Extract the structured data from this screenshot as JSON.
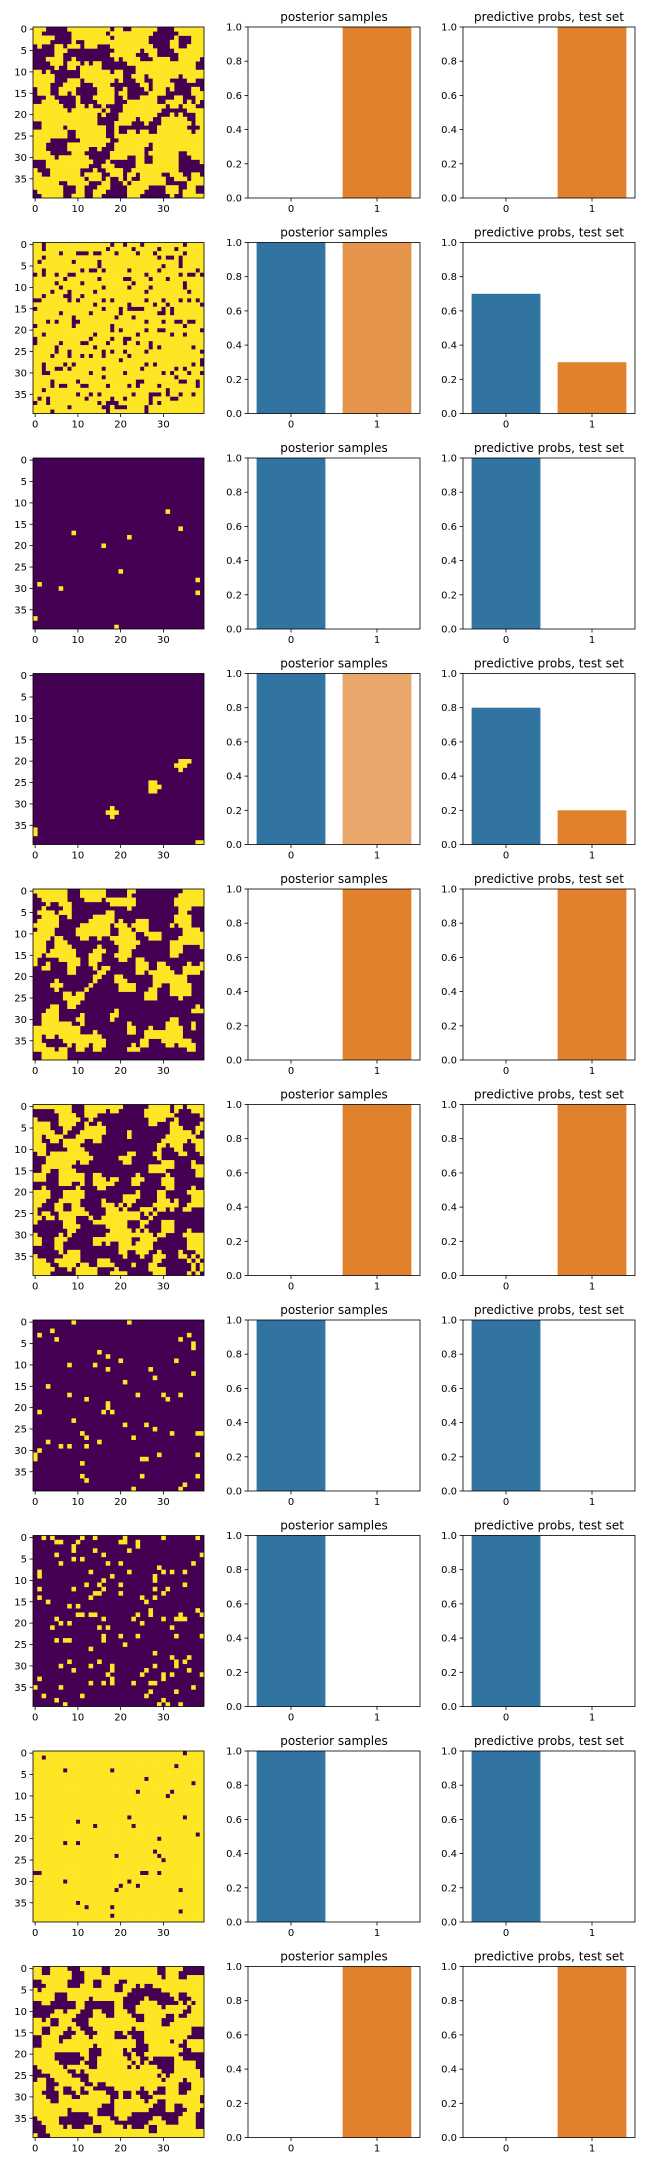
{
  "figure": {
    "title": "",
    "colors": {
      "grid_low": "#440154",
      "grid_high": "#fde725",
      "bar_class0": "#3274a1",
      "bar_class1": "#e1812c",
      "axes": "#000000",
      "background": "#ffffff"
    }
  },
  "chart_data": [
    {
      "row": 1,
      "image": {
        "type": "heatmap",
        "size": 40,
        "x_ticks": [
          "0",
          "10",
          "20",
          "30"
        ],
        "y_ticks": [
          "0",
          "5",
          "10",
          "15",
          "20",
          "25",
          "30",
          "35"
        ],
        "pattern": "mixed",
        "seed": 11,
        "density": 0.55
      },
      "posterior": {
        "type": "bar",
        "title": "posterior samples",
        "categories": [
          "0",
          "1"
        ],
        "values": [
          0.0,
          1.0
        ],
        "alphas": [
          1,
          1
        ],
        "ylim": [
          0,
          1
        ],
        "y_ticks": [
          "0.0",
          "0.2",
          "0.4",
          "0.6",
          "0.8",
          "1.0"
        ]
      },
      "predictive": {
        "type": "bar",
        "title": "predictive probs, test set",
        "categories": [
          "0",
          "1"
        ],
        "values": [
          0.0,
          1.0
        ],
        "ylim": [
          0,
          1
        ],
        "y_ticks": [
          "0.0",
          "0.2",
          "0.4",
          "0.6",
          "0.8",
          "1.0"
        ]
      }
    },
    {
      "row": 2,
      "image": {
        "type": "heatmap",
        "size": 40,
        "x_ticks": [
          "0",
          "10",
          "20",
          "30"
        ],
        "y_ticks": [
          "0",
          "5",
          "10",
          "15",
          "20",
          "25",
          "30",
          "35"
        ],
        "pattern": "sparse",
        "seed": 22,
        "density": 0.85
      },
      "posterior": {
        "type": "bar",
        "title": "posterior samples",
        "categories": [
          "0",
          "1"
        ],
        "values": [
          1.0,
          1.0
        ],
        "alphas": [
          1,
          0.85
        ],
        "ylim": [
          0,
          1
        ],
        "y_ticks": [
          "0.0",
          "0.2",
          "0.4",
          "0.6",
          "0.8",
          "1.0"
        ]
      },
      "predictive": {
        "type": "bar",
        "title": "predictive probs, test set",
        "categories": [
          "0",
          "1"
        ],
        "values": [
          0.7,
          0.3
        ],
        "ylim": [
          0,
          1
        ],
        "y_ticks": [
          "0.0",
          "0.2",
          "0.4",
          "0.6",
          "0.8",
          "1.0"
        ]
      }
    },
    {
      "row": 3,
      "image": {
        "type": "heatmap",
        "size": 40,
        "x_ticks": [
          "0",
          "10",
          "20",
          "30"
        ],
        "y_ticks": [
          "0",
          "5",
          "10",
          "15",
          "20",
          "25",
          "30",
          "35"
        ],
        "pattern": "sparse",
        "seed": 33,
        "density": 0.006
      },
      "posterior": {
        "type": "bar",
        "title": "posterior samples",
        "categories": [
          "0",
          "1"
        ],
        "values": [
          1.0,
          0.0
        ],
        "alphas": [
          1,
          1
        ],
        "ylim": [
          0,
          1
        ],
        "y_ticks": [
          "0.0",
          "0.2",
          "0.4",
          "0.6",
          "0.8",
          "1.0"
        ]
      },
      "predictive": {
        "type": "bar",
        "title": "predictive probs, test set",
        "categories": [
          "0",
          "1"
        ],
        "values": [
          1.0,
          0.0
        ],
        "ylim": [
          0,
          1
        ],
        "y_ticks": [
          "0.0",
          "0.2",
          "0.4",
          "0.6",
          "0.8",
          "1.0"
        ]
      }
    },
    {
      "row": 4,
      "image": {
        "type": "heatmap",
        "size": 40,
        "x_ticks": [
          "0",
          "10",
          "20",
          "30"
        ],
        "y_ticks": [
          "0",
          "5",
          "10",
          "15",
          "20",
          "25",
          "30",
          "35"
        ],
        "pattern": "mixed",
        "seed": 44,
        "density": 0.2
      },
      "posterior": {
        "type": "bar",
        "title": "posterior samples",
        "categories": [
          "0",
          "1"
        ],
        "values": [
          1.0,
          1.0
        ],
        "alphas": [
          1,
          0.7
        ],
        "ylim": [
          0,
          1
        ],
        "y_ticks": [
          "0.0",
          "0.2",
          "0.4",
          "0.6",
          "0.8",
          "1.0"
        ]
      },
      "predictive": {
        "type": "bar",
        "title": "predictive probs, test set",
        "categories": [
          "0",
          "1"
        ],
        "values": [
          0.8,
          0.2
        ],
        "ylim": [
          0,
          1
        ],
        "y_ticks": [
          "0.0",
          "0.2",
          "0.4",
          "0.6",
          "0.8",
          "1.0"
        ]
      }
    },
    {
      "row": 5,
      "image": {
        "type": "heatmap",
        "size": 40,
        "x_ticks": [
          "0",
          "10",
          "20",
          "30"
        ],
        "y_ticks": [
          "0",
          "5",
          "10",
          "15",
          "20",
          "25",
          "30",
          "35"
        ],
        "pattern": "mixed",
        "seed": 55,
        "density": 0.45
      },
      "posterior": {
        "type": "bar",
        "title": "posterior samples",
        "categories": [
          "0",
          "1"
        ],
        "values": [
          0.0,
          1.0
        ],
        "alphas": [
          1,
          1
        ],
        "ylim": [
          0,
          1
        ],
        "y_ticks": [
          "0.0",
          "0.2",
          "0.4",
          "0.6",
          "0.8",
          "1.0"
        ]
      },
      "predictive": {
        "type": "bar",
        "title": "predictive probs, test set",
        "categories": [
          "0",
          "1"
        ],
        "values": [
          0.0,
          1.0
        ],
        "ylim": [
          0,
          1
        ],
        "y_ticks": [
          "0.0",
          "0.2",
          "0.4",
          "0.6",
          "0.8",
          "1.0"
        ]
      }
    },
    {
      "row": 6,
      "image": {
        "type": "heatmap",
        "size": 40,
        "x_ticks": [
          "0",
          "10",
          "20",
          "30"
        ],
        "y_ticks": [
          "0",
          "5",
          "10",
          "15",
          "20",
          "25",
          "30",
          "35"
        ],
        "pattern": "mixed",
        "seed": 66,
        "density": 0.45
      },
      "posterior": {
        "type": "bar",
        "title": "posterior samples",
        "categories": [
          "0",
          "1"
        ],
        "values": [
          0.0,
          1.0
        ],
        "alphas": [
          1,
          1
        ],
        "ylim": [
          0,
          1
        ],
        "y_ticks": [
          "0.0",
          "0.2",
          "0.4",
          "0.6",
          "0.8",
          "1.0"
        ]
      },
      "predictive": {
        "type": "bar",
        "title": "predictive probs, test set",
        "categories": [
          "0",
          "1"
        ],
        "values": [
          0.0,
          1.0
        ],
        "ylim": [
          0,
          1
        ],
        "y_ticks": [
          "0.0",
          "0.2",
          "0.4",
          "0.6",
          "0.8",
          "1.0"
        ]
      }
    },
    {
      "row": 7,
      "image": {
        "type": "heatmap",
        "size": 40,
        "x_ticks": [
          "0",
          "10",
          "20",
          "30"
        ],
        "y_ticks": [
          "0",
          "5",
          "10",
          "15",
          "20",
          "25",
          "30",
          "35"
        ],
        "pattern": "sparse",
        "seed": 77,
        "density": 0.05
      },
      "posterior": {
        "type": "bar",
        "title": "posterior samples",
        "categories": [
          "0",
          "1"
        ],
        "values": [
          1.0,
          0.0
        ],
        "alphas": [
          1,
          1
        ],
        "ylim": [
          0,
          1
        ],
        "y_ticks": [
          "0.0",
          "0.2",
          "0.4",
          "0.6",
          "0.8",
          "1.0"
        ]
      },
      "predictive": {
        "type": "bar",
        "title": "predictive probs, test set",
        "categories": [
          "0",
          "1"
        ],
        "values": [
          1.0,
          0.0
        ],
        "ylim": [
          0,
          1
        ],
        "y_ticks": [
          "0.0",
          "0.2",
          "0.4",
          "0.6",
          "0.8",
          "1.0"
        ]
      }
    },
    {
      "row": 8,
      "image": {
        "type": "heatmap",
        "size": 40,
        "x_ticks": [
          "0",
          "10",
          "20",
          "30"
        ],
        "y_ticks": [
          "0",
          "5",
          "10",
          "15",
          "20",
          "25",
          "30",
          "35"
        ],
        "pattern": "sparse",
        "seed": 88,
        "density": 0.1
      },
      "posterior": {
        "type": "bar",
        "title": "posterior samples",
        "categories": [
          "0",
          "1"
        ],
        "values": [
          1.0,
          0.0
        ],
        "alphas": [
          1,
          1
        ],
        "ylim": [
          0,
          1
        ],
        "y_ticks": [
          "0.0",
          "0.2",
          "0.4",
          "0.6",
          "0.8",
          "1.0"
        ]
      },
      "predictive": {
        "type": "bar",
        "title": "predictive probs, test set",
        "categories": [
          "0",
          "1"
        ],
        "values": [
          1.0,
          0.0
        ],
        "ylim": [
          0,
          1
        ],
        "y_ticks": [
          "0.0",
          "0.2",
          "0.4",
          "0.6",
          "0.8",
          "1.0"
        ]
      }
    },
    {
      "row": 9,
      "image": {
        "type": "heatmap",
        "size": 40,
        "x_ticks": [
          "0",
          "10",
          "20",
          "30"
        ],
        "y_ticks": [
          "0",
          "5",
          "10",
          "15",
          "20",
          "25",
          "30",
          "35"
        ],
        "pattern": "sparse",
        "seed": 99,
        "density": 0.975
      },
      "posterior": {
        "type": "bar",
        "title": "posterior samples",
        "categories": [
          "0",
          "1"
        ],
        "values": [
          1.0,
          0.0
        ],
        "alphas": [
          1,
          1
        ],
        "ylim": [
          0,
          1
        ],
        "y_ticks": [
          "0.0",
          "0.2",
          "0.4",
          "0.6",
          "0.8",
          "1.0"
        ]
      },
      "predictive": {
        "type": "bar",
        "title": "predictive probs, test set",
        "categories": [
          "0",
          "1"
        ],
        "values": [
          1.0,
          0.0
        ],
        "ylim": [
          0,
          1
        ],
        "y_ticks": [
          "0.0",
          "0.2",
          "0.4",
          "0.6",
          "0.8",
          "1.0"
        ]
      }
    },
    {
      "row": 10,
      "image": {
        "type": "heatmap",
        "size": 40,
        "x_ticks": [
          "0",
          "10",
          "20",
          "30"
        ],
        "y_ticks": [
          "0",
          "5",
          "10",
          "15",
          "20",
          "25",
          "30",
          "35"
        ],
        "pattern": "mixed",
        "seed": 111,
        "density": 0.55
      },
      "posterior": {
        "type": "bar",
        "title": "posterior samples",
        "categories": [
          "0",
          "1"
        ],
        "values": [
          0.0,
          1.0
        ],
        "alphas": [
          1,
          1
        ],
        "ylim": [
          0,
          1
        ],
        "y_ticks": [
          "0.0",
          "0.2",
          "0.4",
          "0.6",
          "0.8",
          "1.0"
        ]
      },
      "predictive": {
        "type": "bar",
        "title": "predictive probs, test set",
        "categories": [
          "0",
          "1"
        ],
        "values": [
          0.0,
          1.0
        ],
        "ylim": [
          0,
          1
        ],
        "y_ticks": [
          "0.0",
          "0.2",
          "0.4",
          "0.6",
          "0.8",
          "1.0"
        ]
      }
    }
  ]
}
